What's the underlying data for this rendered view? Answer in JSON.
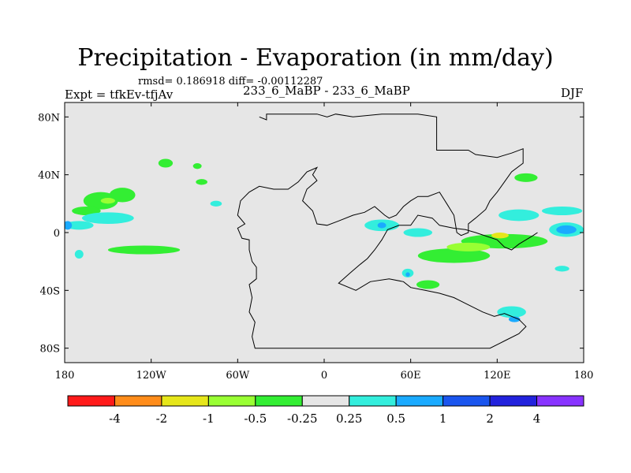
{
  "colors": {
    "background": "#e6e6e6",
    "neg_le_minus4": "#ff1a1a",
    "neg_4_2": "#ff8c1a",
    "neg_2_1": "#e6e61a",
    "neg_1_05": "#99ff33",
    "neg_05_025": "#33ee33",
    "zero_band": "#e6e6e6",
    "pos_025_05": "#33eedd",
    "pos_05_1": "#1aaaff",
    "pos_1_2": "#1a55ee",
    "pos_2_4": "#2222dd",
    "pos_ge_4": "#8833ff"
  },
  "chart_data": {
    "type": "heatmap",
    "title": "Precipitation - Evaporation (in mm/day)",
    "stats_text": "rmsd= 0.186918 diff= -0.00112287",
    "left_label": "Expt = tfkEv-tfjAv",
    "center_label": "233_6_MaBP - 233_6_MaBP",
    "right_label": "DJF",
    "x_range": [
      -180,
      180
    ],
    "y_range": [
      -90,
      90
    ],
    "x_ticks": [
      {
        "value": -180,
        "label": "180"
      },
      {
        "value": -120,
        "label": "120W"
      },
      {
        "value": -60,
        "label": "60W"
      },
      {
        "value": 0,
        "label": "0"
      },
      {
        "value": 60,
        "label": "60E"
      },
      {
        "value": 120,
        "label": "120E"
      },
      {
        "value": 180,
        "label": "180"
      }
    ],
    "y_ticks": [
      {
        "value": 80,
        "label": "80N"
      },
      {
        "value": 40,
        "label": "40N"
      },
      {
        "value": 0,
        "label": "0"
      },
      {
        "value": -40,
        "label": "40S"
      },
      {
        "value": -80,
        "label": "80S"
      }
    ],
    "colorbar": {
      "colors": [
        "#ff1a1a",
        "#ff8c1a",
        "#e6e61a",
        "#99ff33",
        "#33ee33",
        "#e6e6e6",
        "#33eedd",
        "#1aaaff",
        "#1a55ee",
        "#2222dd",
        "#8833ff"
      ],
      "labels": [
        "-4",
        "-2",
        "-1",
        "-0.5",
        "-0.25",
        "0.25",
        "0.5",
        "1",
        "2",
        "4"
      ]
    },
    "continent_outline": [
      [
        -45,
        80
      ],
      [
        -40,
        78
      ],
      [
        -40,
        82
      ],
      [
        -5,
        82
      ],
      [
        2,
        80
      ],
      [
        8,
        82
      ],
      [
        20,
        80
      ],
      [
        40,
        82
      ],
      [
        65,
        82
      ],
      [
        78,
        80
      ],
      [
        78,
        57
      ],
      [
        100,
        57
      ],
      [
        105,
        54
      ],
      [
        120,
        52
      ],
      [
        130,
        55
      ],
      [
        138,
        58
      ],
      [
        138,
        48
      ],
      [
        130,
        42
      ],
      [
        125,
        35
      ],
      [
        120,
        28
      ],
      [
        115,
        22
      ],
      [
        112,
        16
      ],
      [
        105,
        10
      ],
      [
        100,
        6
      ],
      [
        100,
        0
      ],
      [
        95,
        -2
      ],
      [
        92,
        0
      ],
      [
        90,
        12
      ],
      [
        85,
        20
      ],
      [
        80,
        28
      ],
      [
        72,
        25
      ],
      [
        65,
        25
      ],
      [
        60,
        22
      ],
      [
        55,
        18
      ],
      [
        50,
        12
      ],
      [
        45,
        10
      ],
      [
        42,
        12
      ],
      [
        35,
        18
      ],
      [
        28,
        14
      ],
      [
        20,
        12
      ],
      [
        10,
        8
      ],
      [
        2,
        5
      ],
      [
        -5,
        6
      ],
      [
        -8,
        15
      ],
      [
        -15,
        22
      ],
      [
        -12,
        30
      ],
      [
        -5,
        36
      ],
      [
        -8,
        40
      ],
      [
        -5,
        45
      ],
      [
        -12,
        42
      ],
      [
        -18,
        35
      ],
      [
        -25,
        30
      ],
      [
        -35,
        30
      ],
      [
        -45,
        32
      ],
      [
        -52,
        28
      ],
      [
        -58,
        22
      ],
      [
        -60,
        12
      ],
      [
        -55,
        6
      ],
      [
        -60,
        3
      ],
      [
        -57,
        -4
      ],
      [
        -52,
        -5
      ],
      [
        -52,
        -12
      ],
      [
        -50,
        -20
      ],
      [
        -47,
        -24
      ],
      [
        -47,
        -32
      ],
      [
        -52,
        -36
      ],
      [
        -50,
        -45
      ],
      [
        -52,
        -55
      ],
      [
        -48,
        -62
      ],
      [
        -50,
        -72
      ],
      [
        -48,
        -80
      ],
      [
        5,
        -80
      ],
      [
        35,
        -80
      ],
      [
        60,
        -80
      ],
      [
        90,
        -80
      ],
      [
        115,
        -80
      ],
      [
        125,
        -75
      ],
      [
        135,
        -70
      ],
      [
        140,
        -65
      ],
      [
        135,
        -60
      ],
      [
        125,
        -56
      ],
      [
        118,
        -58
      ],
      [
        110,
        -55
      ],
      [
        100,
        -50
      ],
      [
        90,
        -45
      ],
      [
        80,
        -42
      ],
      [
        70,
        -40
      ],
      [
        60,
        -38
      ],
      [
        55,
        -34
      ],
      [
        45,
        -32
      ],
      [
        32,
        -34
      ],
      [
        22,
        -40
      ],
      [
        10,
        -35
      ],
      [
        18,
        -28
      ],
      [
        25,
        -22
      ],
      [
        30,
        -18
      ],
      [
        35,
        -12
      ],
      [
        40,
        -5
      ],
      [
        44,
        2
      ],
      [
        52,
        5
      ],
      [
        60,
        5
      ],
      [
        65,
        12
      ],
      [
        75,
        10
      ],
      [
        80,
        5
      ],
      [
        90,
        3
      ],
      [
        98,
        2
      ],
      [
        105,
        0
      ],
      [
        120,
        -5
      ],
      [
        125,
        -10
      ],
      [
        130,
        -12
      ],
      [
        135,
        -8
      ],
      [
        140,
        -5
      ],
      [
        145,
        -2
      ],
      [
        148,
        0
      ]
    ],
    "anomaly_regions": [
      {
        "level": "neg_05_025",
        "center": [
          -155,
          22
        ],
        "radius": [
          12,
          6
        ]
      },
      {
        "level": "neg_05_025",
        "center": [
          -140,
          26
        ],
        "radius": [
          9,
          5
        ]
      },
      {
        "level": "neg_1_05",
        "center": [
          -150,
          22
        ],
        "radius": [
          5,
          2
        ]
      },
      {
        "level": "neg_05_025",
        "center": [
          -125,
          -12
        ],
        "radius": [
          25,
          3
        ]
      },
      {
        "level": "neg_05_025",
        "center": [
          -165,
          15
        ],
        "radius": [
          10,
          3
        ]
      },
      {
        "level": "pos_025_05",
        "center": [
          -150,
          10
        ],
        "radius": [
          18,
          4
        ]
      },
      {
        "level": "pos_025_05",
        "center": [
          -170,
          5
        ],
        "radius": [
          10,
          3
        ]
      },
      {
        "level": "pos_05_1",
        "center": [
          -178,
          5
        ],
        "radius": [
          3,
          3
        ]
      },
      {
        "level": "neg_05_025",
        "center": [
          -110,
          48
        ],
        "radius": [
          5,
          3
        ]
      },
      {
        "level": "neg_05_025",
        "center": [
          -85,
          35
        ],
        "radius": [
          4,
          2
        ]
      },
      {
        "level": "neg_05_025",
        "center": [
          -88,
          46
        ],
        "radius": [
          3,
          2
        ]
      },
      {
        "level": "neg_05_025",
        "center": [
          90,
          -16
        ],
        "radius": [
          25,
          5
        ]
      },
      {
        "level": "neg_05_025",
        "center": [
          125,
          -6
        ],
        "radius": [
          30,
          5
        ]
      },
      {
        "level": "neg_1_05",
        "center": [
          100,
          -10
        ],
        "radius": [
          15,
          3
        ]
      },
      {
        "level": "neg_2_1",
        "center": [
          122,
          -2
        ],
        "radius": [
          6,
          2
        ]
      },
      {
        "level": "neg_05_025",
        "center": [
          72,
          -36
        ],
        "radius": [
          8,
          3
        ]
      },
      {
        "level": "neg_05_025",
        "center": [
          140,
          38
        ],
        "radius": [
          8,
          3
        ]
      },
      {
        "level": "pos_025_05",
        "center": [
          40,
          5
        ],
        "radius": [
          12,
          4
        ]
      },
      {
        "level": "pos_05_1",
        "center": [
          40,
          5
        ],
        "radius": [
          3,
          2
        ]
      },
      {
        "level": "pos_025_05",
        "center": [
          65,
          0
        ],
        "radius": [
          10,
          3
        ]
      },
      {
        "level": "pos_025_05",
        "center": [
          135,
          12
        ],
        "radius": [
          14,
          4
        ]
      },
      {
        "level": "pos_025_05",
        "center": [
          165,
          15
        ],
        "radius": [
          14,
          3
        ]
      },
      {
        "level": "pos_025_05",
        "center": [
          168,
          2
        ],
        "radius": [
          12,
          5
        ]
      },
      {
        "level": "pos_05_1",
        "center": [
          168,
          2
        ],
        "radius": [
          7,
          3
        ]
      },
      {
        "level": "pos_025_05",
        "center": [
          130,
          -55
        ],
        "radius": [
          10,
          4
        ]
      },
      {
        "level": "pos_05_1",
        "center": [
          132,
          -60
        ],
        "radius": [
          4,
          2
        ]
      },
      {
        "level": "pos_025_05",
        "center": [
          58,
          -28
        ],
        "radius": [
          4,
          3
        ]
      },
      {
        "level": "pos_05_1",
        "center": [
          58,
          -29
        ],
        "radius": [
          1.5,
          1.5
        ]
      },
      {
        "level": "pos_025_05",
        "center": [
          -75,
          20
        ],
        "radius": [
          4,
          2
        ]
      },
      {
        "level": "pos_025_05",
        "center": [
          -170,
          -15
        ],
        "radius": [
          3,
          3
        ]
      },
      {
        "level": "pos_025_05",
        "center": [
          165,
          -25
        ],
        "radius": [
          5,
          2
        ]
      }
    ]
  }
}
